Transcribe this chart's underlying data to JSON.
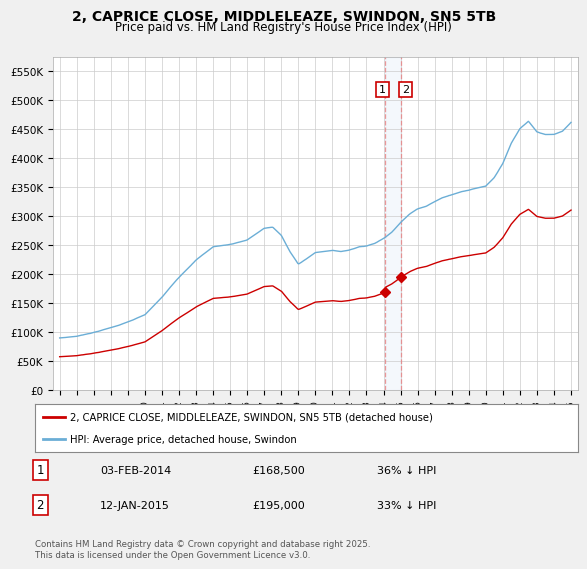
{
  "title": "2, CAPRICE CLOSE, MIDDLELEAZE, SWINDON, SN5 5TB",
  "subtitle": "Price paid vs. HM Land Registry's House Price Index (HPI)",
  "ylim": [
    0,
    575000
  ],
  "yticks": [
    0,
    50000,
    100000,
    150000,
    200000,
    250000,
    300000,
    350000,
    400000,
    450000,
    500000,
    550000
  ],
  "yticklabels": [
    "£0",
    "£50K",
    "£100K",
    "£150K",
    "£200K",
    "£250K",
    "£300K",
    "£350K",
    "£400K",
    "£450K",
    "£500K",
    "£550K"
  ],
  "hpi_color": "#6baed6",
  "price_color": "#cc0000",
  "sale1_yr": 2014.09,
  "sale2_yr": 2015.03,
  "sale1_price": 168500,
  "sale2_price": 195000,
  "sale1": {
    "label": "1",
    "date": "03-FEB-2014",
    "price": "£168,500",
    "hpi": "36% ↓ HPI"
  },
  "sale2": {
    "label": "2",
    "date": "12-JAN-2015",
    "price": "£195,000",
    "hpi": "33% ↓ HPI"
  },
  "legend_house": "2, CAPRICE CLOSE, MIDDLELEAZE, SWINDON, SN5 5TB (detached house)",
  "legend_hpi": "HPI: Average price, detached house, Swindon",
  "footer": "Contains HM Land Registry data © Crown copyright and database right 2025.\nThis data is licensed under the Open Government Licence v3.0.",
  "bg_color": "#f0f0f0",
  "plot_bg": "#ffffff",
  "grid_color": "#cccccc"
}
